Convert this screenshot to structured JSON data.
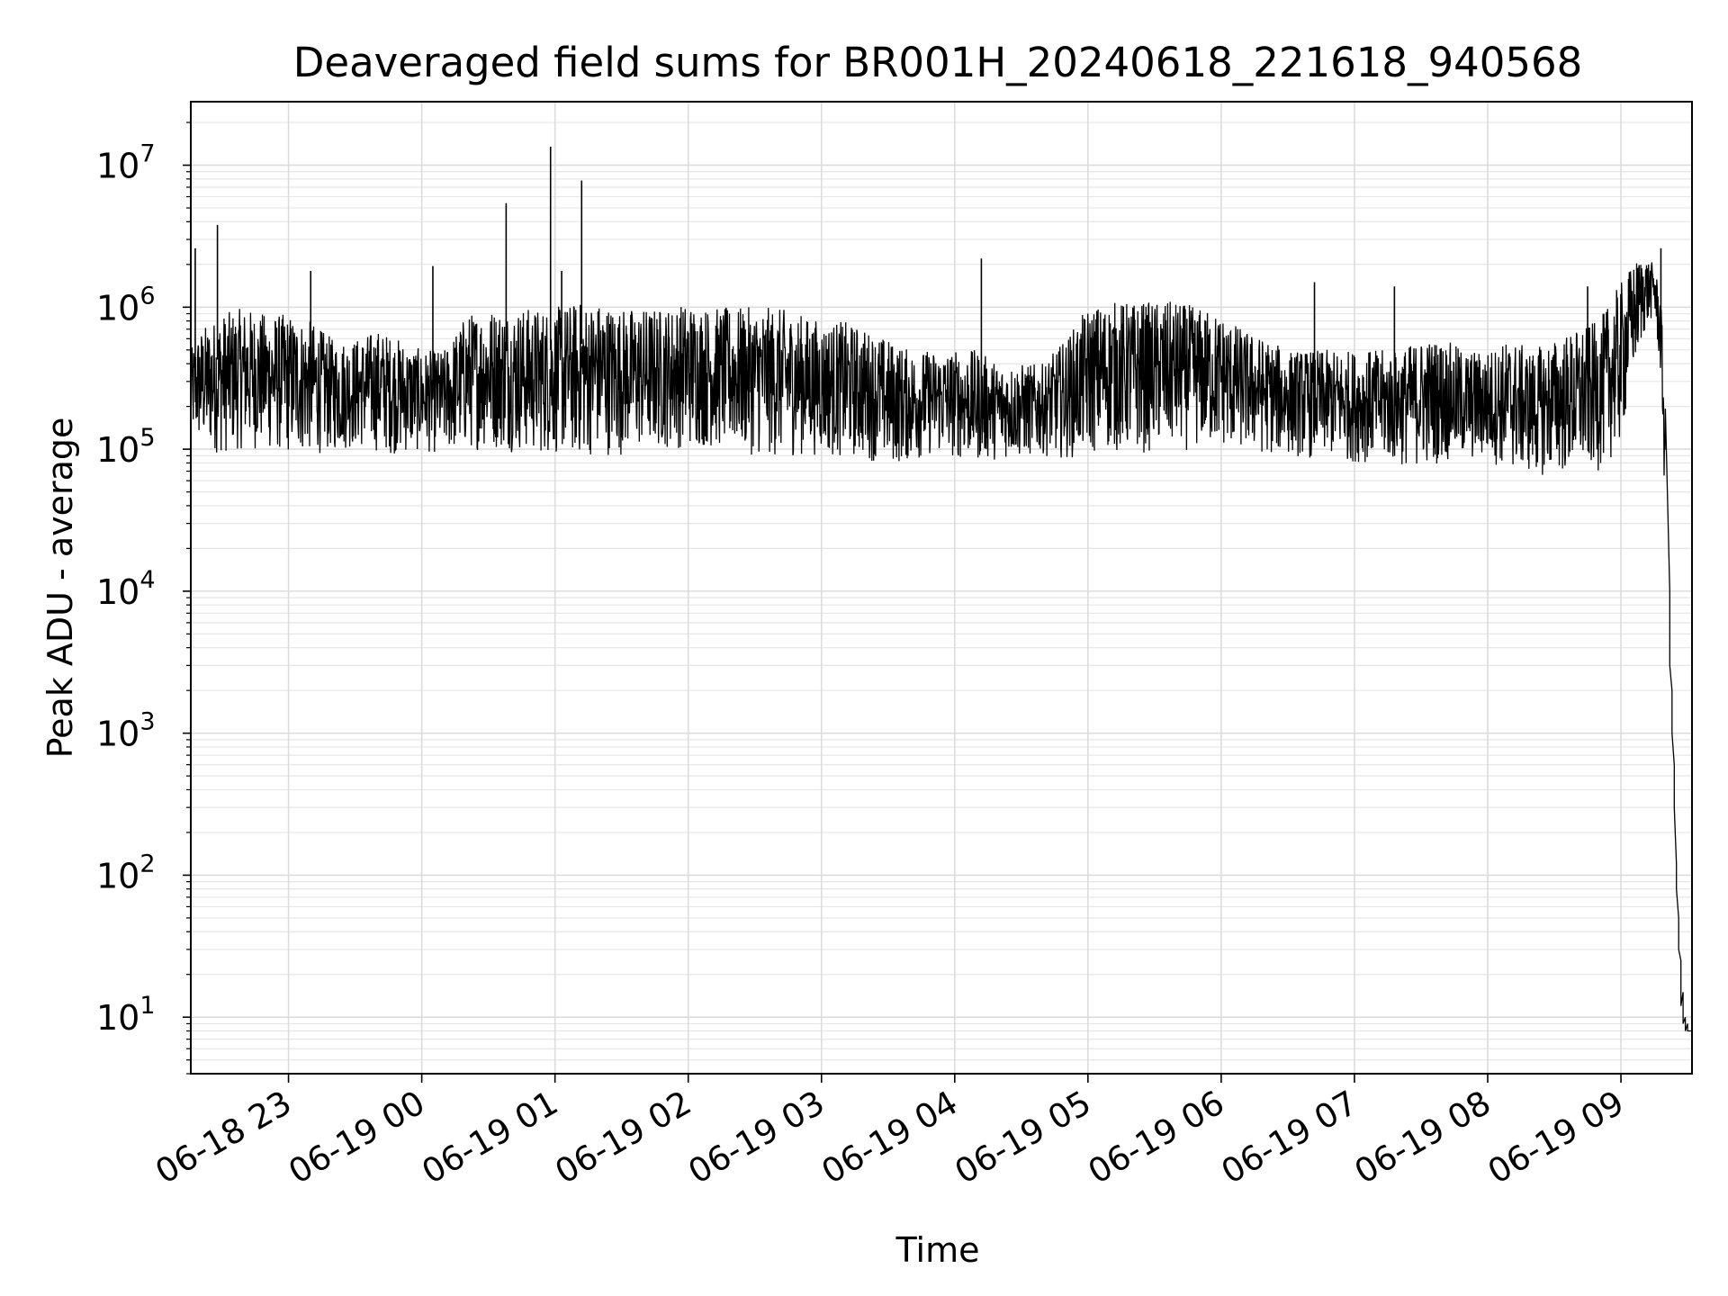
{
  "chart_data": {
    "type": "line",
    "title": "Deaveraged field sums for BR001H_20240618_221618_940568",
    "xlabel": "Time",
    "ylabel": "Peak ADU - average",
    "x_scale": "time",
    "y_scale": "log",
    "xlim": [
      "2024-06-18 22:16",
      "2024-06-19 09:32"
    ],
    "ylim": [
      4,
      28000000
    ],
    "grid": true,
    "x_tick_labels": [
      "06-18 23",
      "06-19 00",
      "06-19 01",
      "06-19 02",
      "06-19 03",
      "06-19 04",
      "06-19 05",
      "06-19 06",
      "06-19 07",
      "06-19 08",
      "06-19 09"
    ],
    "x_tick_values": [
      "2024-06-18 23:00",
      "2024-06-19 00:00",
      "2024-06-19 01:00",
      "2024-06-19 02:00",
      "2024-06-19 03:00",
      "2024-06-19 04:00",
      "2024-06-19 05:00",
      "2024-06-19 06:00",
      "2024-06-19 07:00",
      "2024-06-19 08:00",
      "2024-06-19 09:00"
    ],
    "y_tick_labels": [
      {
        "base": "10",
        "exp": "1"
      },
      {
        "base": "10",
        "exp": "2"
      },
      {
        "base": "10",
        "exp": "3"
      },
      {
        "base": "10",
        "exp": "4"
      },
      {
        "base": "10",
        "exp": "5"
      },
      {
        "base": "10",
        "exp": "6"
      },
      {
        "base": "10",
        "exp": "7"
      }
    ],
    "y_tick_values": [
      10,
      100,
      1000,
      10000,
      100000,
      1000000,
      10000000
    ],
    "series": [
      {
        "color": "#000000",
        "x": [
          "2024-06-18 22:16",
          "2024-06-18 22:20",
          "2024-06-18 22:30",
          "2024-06-18 22:40",
          "2024-06-18 22:50",
          "2024-06-18 23:00",
          "2024-06-18 23:10",
          "2024-06-18 23:20",
          "2024-06-18 23:30",
          "2024-06-18 23:40",
          "2024-06-18 23:50",
          "2024-06-19 00:00",
          "2024-06-19 00:10",
          "2024-06-19 00:20",
          "2024-06-19 00:30",
          "2024-06-19 00:40",
          "2024-06-19 00:50",
          "2024-06-19 01:00",
          "2024-06-19 01:10",
          "2024-06-19 01:20",
          "2024-06-19 01:30",
          "2024-06-19 01:40",
          "2024-06-19 01:50",
          "2024-06-19 02:00",
          "2024-06-19 02:10",
          "2024-06-19 02:20",
          "2024-06-19 02:30",
          "2024-06-19 02:40",
          "2024-06-19 02:50",
          "2024-06-19 03:00",
          "2024-06-19 03:10",
          "2024-06-19 03:20",
          "2024-06-19 03:30",
          "2024-06-19 03:40",
          "2024-06-19 03:50",
          "2024-06-19 04:00",
          "2024-06-19 04:10",
          "2024-06-19 04:20",
          "2024-06-19 04:30",
          "2024-06-19 04:40",
          "2024-06-19 04:50",
          "2024-06-19 05:00",
          "2024-06-19 05:10",
          "2024-06-19 05:20",
          "2024-06-19 05:30",
          "2024-06-19 05:40",
          "2024-06-19 05:50",
          "2024-06-19 06:00",
          "2024-06-19 06:10",
          "2024-06-19 06:20",
          "2024-06-19 06:30",
          "2024-06-19 06:40",
          "2024-06-19 06:50",
          "2024-06-19 07:00",
          "2024-06-19 07:10",
          "2024-06-19 07:20",
          "2024-06-19 07:30",
          "2024-06-19 07:40",
          "2024-06-19 07:50",
          "2024-06-19 08:00",
          "2024-06-19 08:10",
          "2024-06-19 08:20",
          "2024-06-19 08:30",
          "2024-06-19 08:40",
          "2024-06-19 08:50",
          "2024-06-19 09:00",
          "2024-06-19 09:05",
          "2024-06-19 09:10",
          "2024-06-19 09:15",
          "2024-06-19 09:18",
          "2024-06-19 09:20",
          "2024-06-19 09:22",
          "2024-06-19 09:23",
          "2024-06-19 09:24",
          "2024-06-19 09:25",
          "2024-06-19 09:26",
          "2024-06-19 09:27",
          "2024-06-19 09:28",
          "2024-06-19 09:29",
          "2024-06-19 09:30",
          "2024-06-19 09:32"
        ],
        "low": [
          120000,
          100000,
          90000,
          100000,
          95000,
          90000,
          90000,
          95000,
          100000,
          95000,
          90000,
          95000,
          90000,
          95000,
          100000,
          95000,
          90000,
          90000,
          85000,
          90000,
          90000,
          95000,
          100000,
          100000,
          100000,
          95000,
          90000,
          85000,
          90000,
          90000,
          85000,
          85000,
          75000,
          80000,
          90000,
          85000,
          80000,
          85000,
          85000,
          90000,
          85000,
          90000,
          95000,
          90000,
          95000,
          95000,
          100000,
          100000,
          95000,
          90000,
          90000,
          85000,
          85000,
          80000,
          80000,
          75000,
          75000,
          80000,
          80000,
          80000,
          70000,
          65000,
          65000,
          65000,
          70000,
          100000,
          300000,
          600000,
          900000,
          300000,
          30000,
          3000,
          1000,
          300,
          80,
          30,
          12,
          9,
          8,
          8,
          8
        ],
        "high": [
          500000,
          700000,
          900000,
          1000000,
          900000,
          900000,
          800000,
          600000,
          600000,
          700000,
          600000,
          500000,
          500000,
          900000,
          1000000,
          1000000,
          1000000,
          1000000,
          1100000,
          1100000,
          1000000,
          1000000,
          1000000,
          1100000,
          1000000,
          1000000,
          1000000,
          1000000,
          900000,
          800000,
          800000,
          700000,
          600000,
          500000,
          500000,
          500000,
          500000,
          400000,
          400000,
          400000,
          600000,
          1000000,
          1100000,
          1100000,
          1100000,
          1100000,
          1000000,
          900000,
          700000,
          600000,
          500000,
          500000,
          500000,
          500000,
          500000,
          500000,
          600000,
          600000,
          500000,
          500000,
          600000,
          500000,
          600000,
          700000,
          800000,
          1500000,
          2000000,
          2400000,
          2000000,
          1200000,
          200000,
          10000,
          2000,
          600,
          120,
          50,
          25,
          15,
          10,
          9,
          8
        ],
        "peaks": [
          {
            "x": "2024-06-18 22:18",
            "y": 2600000
          },
          {
            "x": "2024-06-18 22:28",
            "y": 3800000
          },
          {
            "x": "2024-06-18 23:10",
            "y": 1800000
          },
          {
            "x": "2024-06-19 00:05",
            "y": 1950000
          },
          {
            "x": "2024-06-19 00:38",
            "y": 5400000
          },
          {
            "x": "2024-06-19 00:58",
            "y": 13500000
          },
          {
            "x": "2024-06-19 01:03",
            "y": 1800000
          },
          {
            "x": "2024-06-19 01:12",
            "y": 7800000
          },
          {
            "x": "2024-06-19 04:12",
            "y": 2200000
          },
          {
            "x": "2024-06-19 06:42",
            "y": 1500000
          },
          {
            "x": "2024-06-19 07:18",
            "y": 1400000
          },
          {
            "x": "2024-06-19 08:45",
            "y": 1400000
          },
          {
            "x": "2024-06-19 09:18",
            "y": 2600000
          }
        ]
      }
    ]
  }
}
